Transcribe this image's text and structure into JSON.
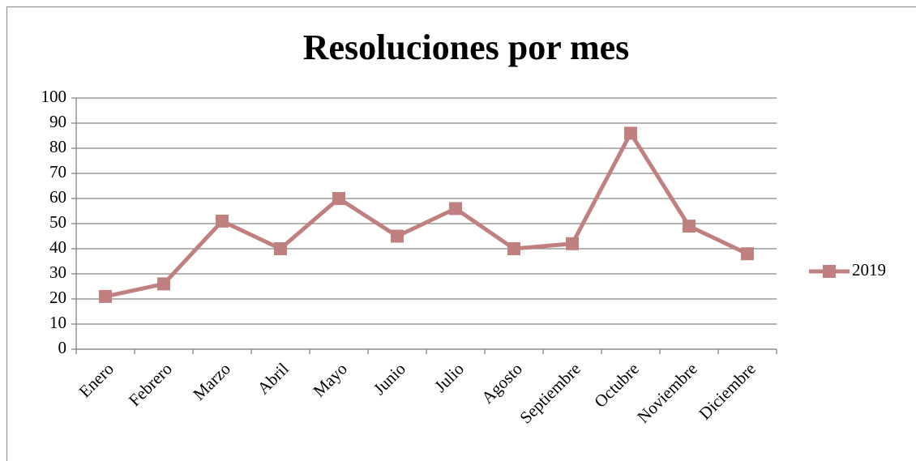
{
  "chart_data": {
    "type": "line",
    "title": "Resoluciones por mes",
    "categories": [
      "Enero",
      "Febrero",
      "Marzo",
      "Abril",
      "Mayo",
      "Junio",
      "Julio",
      "Agosto",
      "Septiembre",
      "Octubre",
      "Noviembre",
      "Diciembre"
    ],
    "series": [
      {
        "name": "2019",
        "color": "#c0807f",
        "values": [
          21,
          26,
          51,
          40,
          60,
          45,
          56,
          40,
          42,
          86,
          49,
          38
        ]
      }
    ],
    "ylim": [
      0,
      100
    ],
    "yticks": [
      0,
      10,
      20,
      30,
      40,
      50,
      60,
      70,
      80,
      90,
      100
    ],
    "grid": true,
    "legend": "right"
  }
}
